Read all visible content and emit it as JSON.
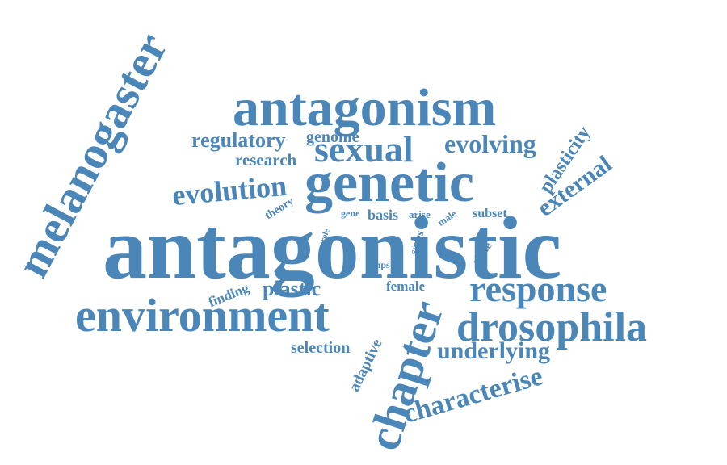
{
  "style": {
    "word_color": "#4a86b8",
    "background": "#ffffff"
  },
  "words": [
    {
      "text": "antagonistic"
    },
    {
      "text": "antagonism"
    },
    {
      "text": "genetic"
    },
    {
      "text": "melanogaster"
    },
    {
      "text": "environment"
    },
    {
      "text": "drosophila"
    },
    {
      "text": "chapter"
    },
    {
      "text": "sexual"
    },
    {
      "text": "response"
    },
    {
      "text": "evolution"
    },
    {
      "text": "evolving"
    },
    {
      "text": "regulatory"
    },
    {
      "text": "external"
    },
    {
      "text": "characterise"
    },
    {
      "text": "underlying"
    },
    {
      "text": "plastic"
    },
    {
      "text": "plasticity"
    },
    {
      "text": "research"
    },
    {
      "text": "genome"
    },
    {
      "text": "selection"
    },
    {
      "text": "adaptive"
    },
    {
      "text": "basis"
    },
    {
      "text": "subset"
    },
    {
      "text": "finding"
    },
    {
      "text": "female"
    },
    {
      "text": "theory"
    },
    {
      "text": "allele"
    },
    {
      "text": "sexes"
    },
    {
      "text": "arise"
    },
    {
      "text": "gene"
    },
    {
      "text": "snps"
    },
    {
      "text": "male"
    },
    {
      "text": "role"
    }
  ]
}
